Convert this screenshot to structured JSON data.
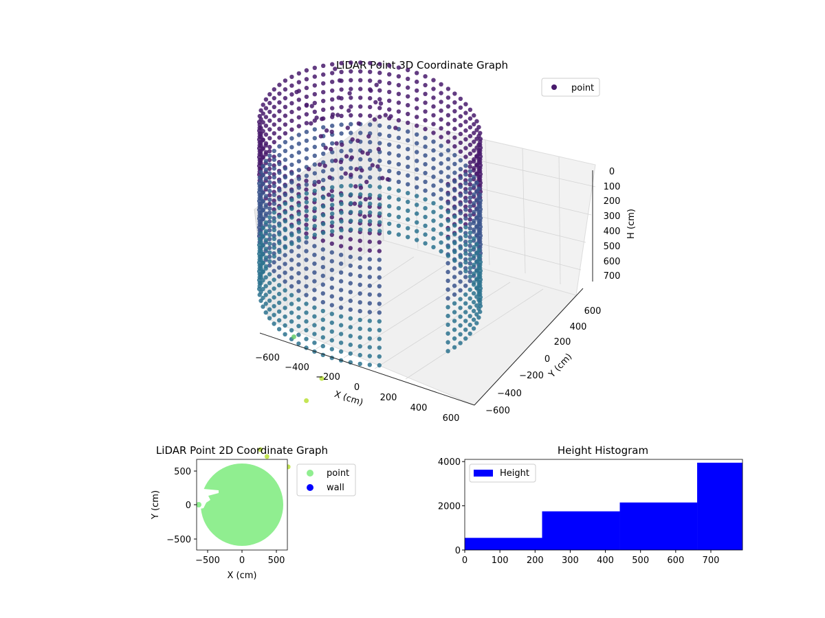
{
  "chart_data": [
    {
      "type": "scatter",
      "title": "LiDAR Point 3D Coordinate Graph",
      "xlabel": "X (cm)",
      "ylabel": "Y (cm)",
      "zlabel": "H (cm)",
      "x_ticks": [
        "−600",
        "−400",
        "−200",
        "0",
        "200",
        "400",
        "600"
      ],
      "y_ticks": [
        "−600",
        "−400",
        "−200",
        "0",
        "200",
        "400",
        "600"
      ],
      "z_ticks": [
        "0",
        "100",
        "200",
        "300",
        "400",
        "500",
        "600",
        "700"
      ],
      "xlim": [
        -650,
        650
      ],
      "ylim": [
        -650,
        650
      ],
      "zlim": [
        0,
        780
      ],
      "z_inverted": true,
      "grid": true,
      "legend": {
        "entries": [
          "point"
        ],
        "placement": "upper-right"
      },
      "series": [
        {
          "name": "point",
          "description_colors": [
            "#481a6c",
            "#3a548c",
            "#2c728e",
            "#5ec962",
            "#b5de2b"
          ],
          "wall": {
            "radius": 620,
            "h_range": [
              0,
              780
            ],
            "arc_deg": [
              -20,
              300
            ]
          },
          "stray_points": [
            {
              "x": -330,
              "y": -300,
              "h": 900
            },
            {
              "x": -120,
              "y": -380,
              "h": 1000
            },
            {
              "x": -150,
              "y": -520,
              "h": 1050
            },
            {
              "x": -350,
              "y": -700,
              "h": 1250
            },
            {
              "x": -300,
              "y": -720,
              "h": 1260
            },
            {
              "x": -150,
              "y": -760,
              "h": 1250
            }
          ]
        }
      ]
    },
    {
      "type": "scatter",
      "title": "LiDAR Point 2D Coordinate Graph",
      "xlabel": "X (cm)",
      "ylabel": "Y (cm)",
      "x_ticks": [
        "−500",
        "0",
        "500"
      ],
      "y_ticks": [
        "−500",
        "0",
        "500"
      ],
      "xlim": [
        -660,
        660
      ],
      "ylim": [
        -680,
        680
      ],
      "legend": {
        "entries": [
          "point",
          "wall"
        ],
        "placement": "outside-right"
      },
      "series": [
        {
          "name": "point",
          "color": "#90ee90",
          "disc_radius": 600
        },
        {
          "name": "wall",
          "color": "#0000ff"
        }
      ]
    },
    {
      "type": "bar",
      "title": "Height Histogram",
      "xlabel": "",
      "ylabel": "",
      "x_ticks": [
        "0",
        "100",
        "200",
        "300",
        "400",
        "500",
        "600",
        "700"
      ],
      "y_ticks": [
        "0",
        "2000",
        "4000"
      ],
      "xlim": [
        0,
        790
      ],
      "ylim": [
        0,
        4100
      ],
      "legend": {
        "entries": [
          "Height"
        ],
        "placement": "upper-left"
      },
      "series": [
        {
          "name": "Height",
          "color": "#0000ff",
          "bins": [
            {
              "from": 0,
              "to": 220,
              "count": 550
            },
            {
              "from": 220,
              "to": 441,
              "count": 1750
            },
            {
              "from": 441,
              "to": 661,
              "count": 2150
            },
            {
              "from": 661,
              "to": 790,
              "count": 3950
            }
          ]
        }
      ]
    }
  ]
}
